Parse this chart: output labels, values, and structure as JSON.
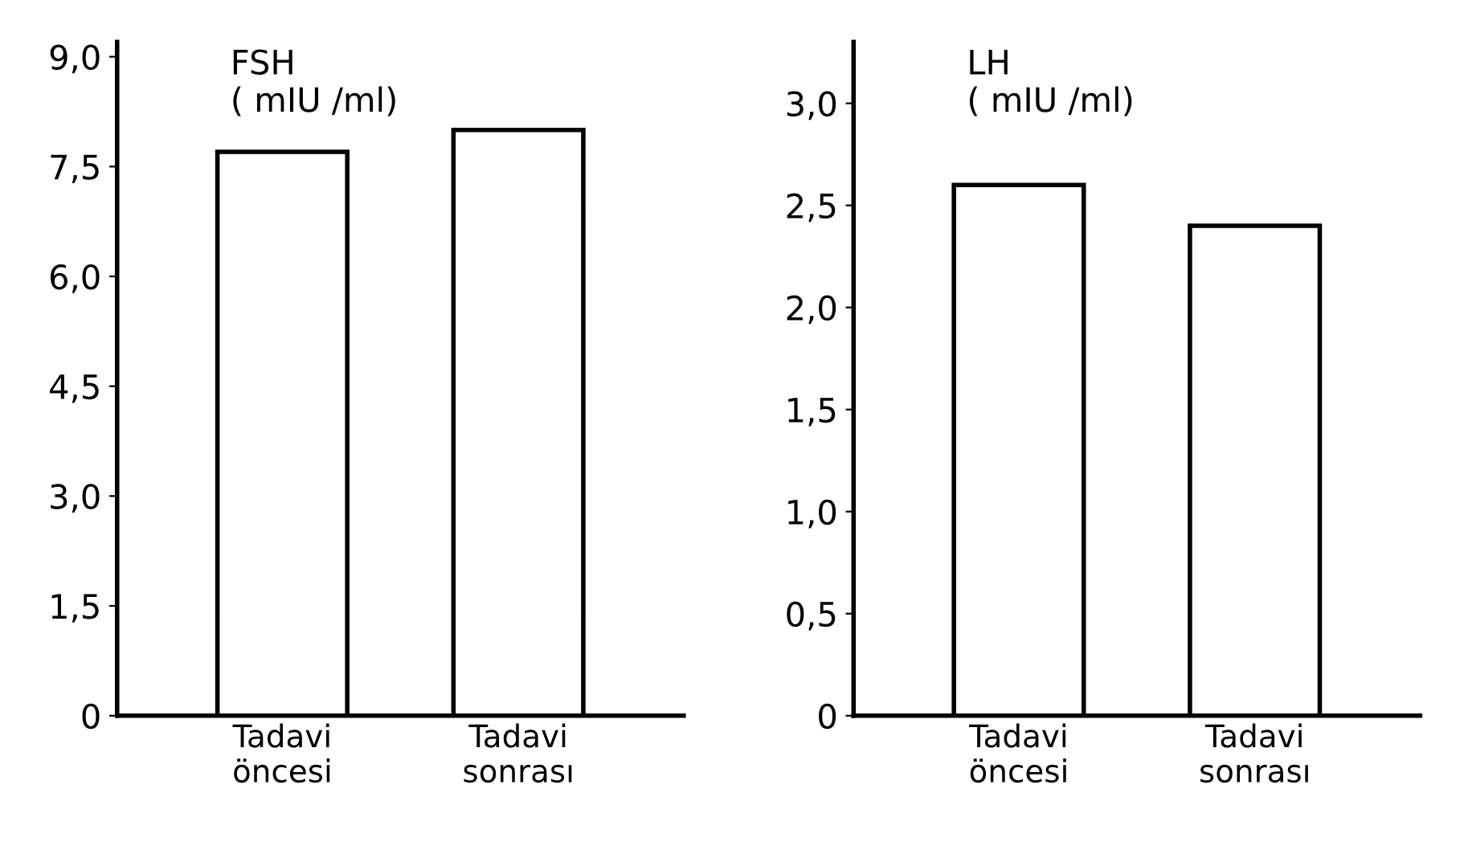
{
  "chart_data": [
    {
      "type": "bar",
      "title": "FSH\n( mIU /ml)",
      "categories": [
        "Tadavi\nöncesi",
        "Tadavi\nsonrası"
      ],
      "values": [
        7.7,
        8.0
      ],
      "color": "#ffffff",
      "ylim": [
        0,
        9.2
      ],
      "yticks": [
        {
          "value": 0,
          "label": "0"
        },
        {
          "value": 1.5,
          "label": "1,5"
        },
        {
          "value": 3.0,
          "label": "3,0"
        },
        {
          "value": 4.5,
          "label": "4,5"
        },
        {
          "value": 6.0,
          "label": "6,0"
        },
        {
          "value": 7.5,
          "label": "7,5"
        },
        {
          "value": 9.0,
          "label": "9,0"
        }
      ],
      "grid": false,
      "legend": false
    },
    {
      "type": "bar",
      "title": "LH\n( mIU /ml)",
      "categories": [
        "Tadavi\nöncesi",
        "Tadavi\nsonrası"
      ],
      "values": [
        2.6,
        2.4
      ],
      "color": "#ffffff",
      "ylim": [
        0,
        3.3
      ],
      "yticks": [
        {
          "value": 0,
          "label": "0"
        },
        {
          "value": 0.5,
          "label": "0,5"
        },
        {
          "value": 1.0,
          "label": "1,0"
        },
        {
          "value": 1.5,
          "label": "1,5"
        },
        {
          "value": 2.0,
          "label": "2,0"
        },
        {
          "value": 2.5,
          "label": "2,5"
        },
        {
          "value": 3.0,
          "label": "3,0"
        }
      ],
      "grid": false,
      "legend": false
    }
  ]
}
